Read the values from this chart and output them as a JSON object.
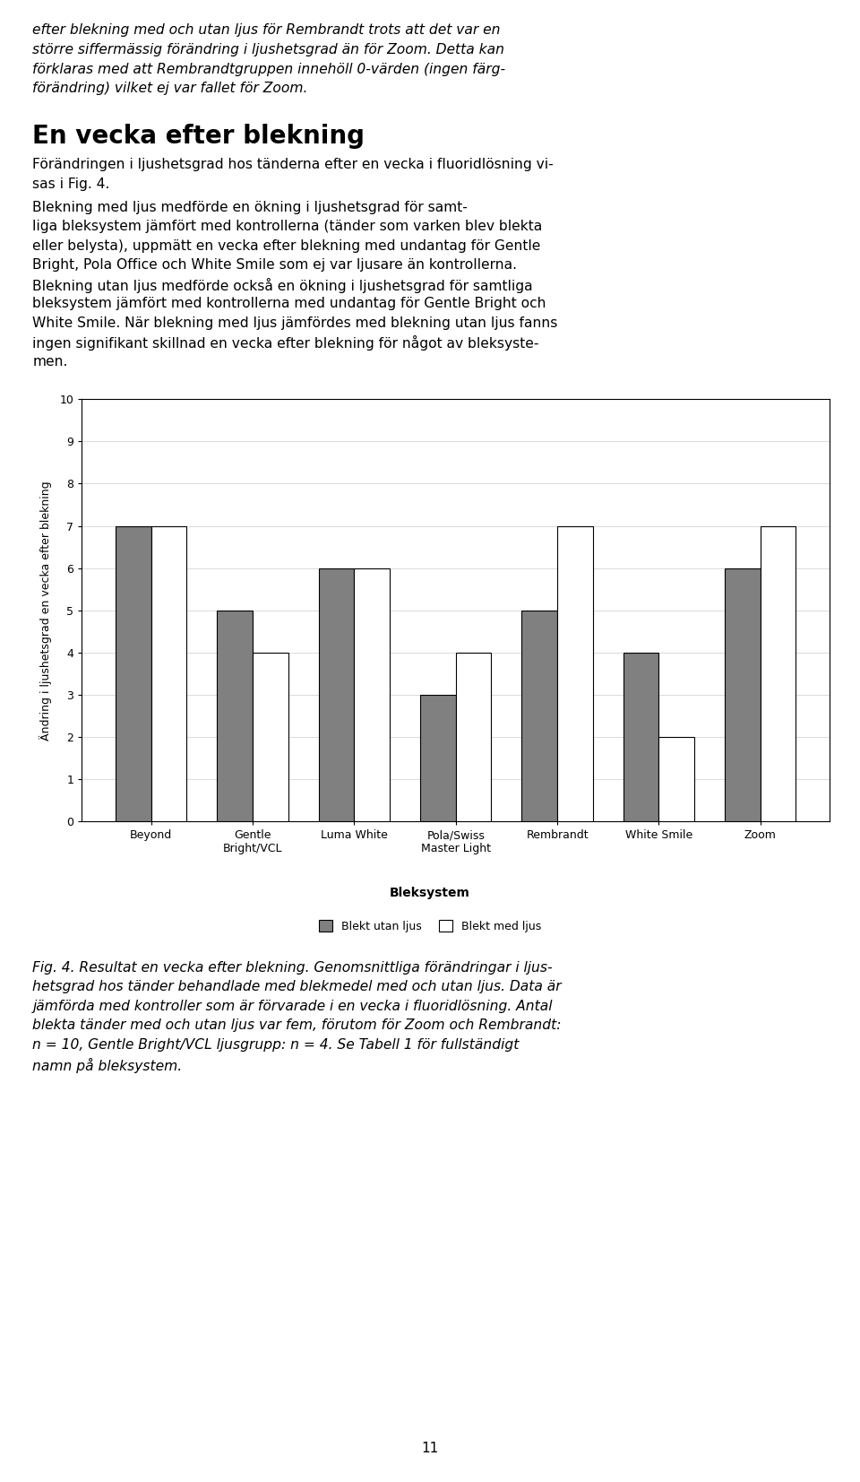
{
  "categories": [
    "Beyond",
    "Gentle\nBright/VCL",
    "Luma White",
    "Pola/Swiss\nMaster Light",
    "Rembrandt",
    "White Smile",
    "Zoom"
  ],
  "blekt_utan_ljus": [
    7,
    5,
    6,
    3,
    5,
    4,
    6
  ],
  "blekt_med_ljus": [
    7,
    4,
    6,
    4,
    7,
    2,
    7
  ],
  "bar_color_utan": "#808080",
  "bar_color_med": "#ffffff",
  "bar_edgecolor": "#000000",
  "ylabel": "Ändring i ljushetsgrad en vecka efter blekning",
  "xlabel": "Bleksystem",
  "ylim": [
    0,
    10
  ],
  "yticks": [
    0,
    1,
    2,
    3,
    4,
    5,
    6,
    7,
    8,
    9,
    10
  ],
  "legend_utan": "Blekt utan ljus",
  "legend_med": "Blekt med ljus",
  "bar_width": 0.35,
  "axis_fontsize": 9,
  "tick_fontsize": 9,
  "legend_fontsize": 9,
  "xlabel_fontsize": 10,
  "background_color": "#ffffff",
  "top_para_lines": [
    "efter blekning med och utan ljus för Rembrandt trots att det var en",
    "större siffermässig förändring i ljushetsgrad än för Zoom. Detta kan",
    "förklaras med att Rembrandtgruppen innehöll 0-värden (ingen färg-",
    "förändring) vilket ej var fallet för Zoom."
  ],
  "section_heading": "En vecka efter blekning",
  "section_intro": "Förändringen i ljushetsgrad hos tänderna efter en vecka i fluoridlösning visas i Fig. 4.",
  "body_para": "Blekning med ljus medförde en ökning i ljushetsgrad för samtliga bleksystem jämfört med kontrollerna (tänder som varken blev blekta eller belysta), uppmätt en vecka efter blekning med undantag för Gentle Bright, Pola Office och White Smile som ej var ljusare än kontrollerna. Blekning utan ljus medförde också en ökning i ljushetsgrad för samtliga bleksystem jämfört med kontrollerna med undantag för Gentle Bright och White Smile. När blekning med ljus jämfördes med blekning utan ljus fanns ingen signifikant skillnad en vecka efter blekning för något av bleksystemen.",
  "body_lines": [
    "Blekning med ljus medförde en ökning i ljushetsgrad för samt-",
    "liga bleksystem jämfört med kontrollerna (tänder som varken blev blekta",
    "eller belysta), uppmätt en vecka efter blekning med undantag för Gentle",
    "Bright, Pola Office och White Smile som ej var ljusare än kontrollerna.",
    "Blekning utan ljus medförde också en ökning i ljushetsgrad för samtliga",
    "bleksystem jämfört med kontrollerna med undantag för Gentle Bright och",
    "White Smile. När blekning med ljus jämfördes med blekning utan ljus fanns",
    "ingen signifikant skillnad en vecka efter blekning för något av bleksyste-",
    "men."
  ],
  "caption_lines": [
    "Fig. 4. Resultat en vecka efter blekning. Genomsnittliga förändringar i ljus-",
    "hetsgrad hos tänder behandlade med blekmedel med och utan ljus. Data är",
    "jämförda med kontroller som är förvarade i en vecka i fluoridlösning. Antal",
    "blekta tänder med och utan ljus var fem, förutom för Zoom och Rembrandt:",
    "n = 10, Gentle Bright/VCL ljusgrupp: n = 4. Se Tabell 1 för fullständigt",
    "namn på bleksystem."
  ],
  "page_number": "11"
}
